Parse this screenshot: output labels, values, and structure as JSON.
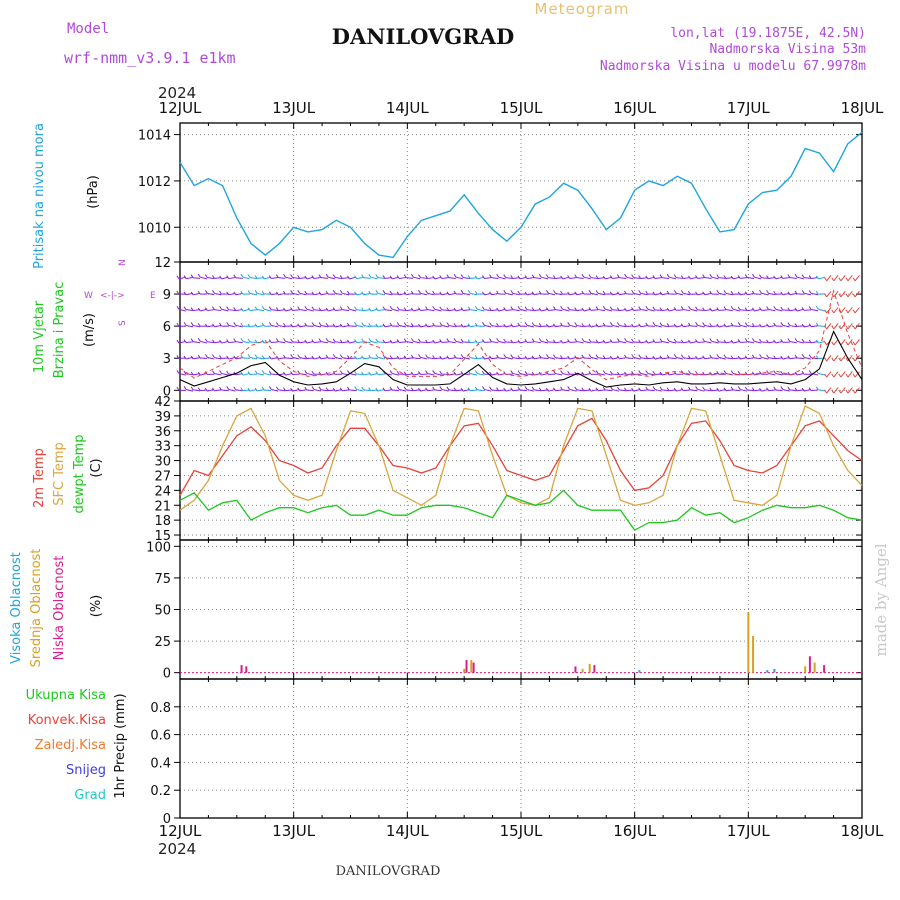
{
  "header": {
    "meteogram_label": "Meteogram",
    "model_label": "Model",
    "model_name": "wrf-nmm_v3.9.1 e1km",
    "title": "DANILOVGRAD",
    "lonlat": "lon,lat (19.1875E, 42.5N)",
    "altitude": "Nadmorska Visina 53m",
    "model_altitude": "Nadmorska Visina u modelu 67.9978m",
    "footer_title": "DANILOVGRAD",
    "watermark": "made by Angel"
  },
  "colors": {
    "pressure": "#1ea5e0",
    "wind_main": "#8a1fd6",
    "wind_strong": "#1ea5e0",
    "wind_gust": "#2a6be0",
    "temp_2m": "#e8413a",
    "temp_sfc": "#d9a63c",
    "dewpoint": "#1ec81e",
    "cloud_high": "#1ea5e0",
    "cloud_mid": "#d9a020",
    "cloud_low": "#d81e8c",
    "precip_total": "#1ec81e",
    "precip_conv": "#e8413a",
    "precip_frz": "#f07a2a",
    "snow": "#4040d8",
    "hail": "#20c8c8"
  },
  "chart_data": [
    {
      "type": "line",
      "panel": "pressure",
      "ylabel_name": "Pritisak na nivou mora",
      "ylabel_unit": "(hPa)",
      "xlim": [
        0,
        144
      ],
      "ylim": [
        1008.5,
        1014.5
      ],
      "yticks": [
        1010,
        1012,
        1014
      ],
      "x_ticklabels": [
        "12JUL",
        "13JUL",
        "14JUL",
        "15JUL",
        "16JUL",
        "17JUL",
        "18JUL"
      ],
      "x_year": "2024",
      "grid": true,
      "series": [
        {
          "x": [
            0,
            3,
            6,
            9,
            12,
            15,
            18,
            21,
            24,
            27,
            30,
            33,
            36,
            39,
            42,
            45,
            48,
            51,
            54,
            57,
            60,
            63,
            66,
            69,
            72,
            75,
            78,
            81,
            84,
            87,
            90,
            93,
            96,
            99,
            102,
            105,
            108,
            111,
            114,
            117,
            120,
            123,
            126,
            129,
            132,
            135,
            138,
            141,
            144
          ],
          "values": [
            1012.8,
            1011.8,
            1012.1,
            1011.8,
            1010.4,
            1009.3,
            1008.8,
            1009.3,
            1010.0,
            1009.8,
            1009.9,
            1010.3,
            1010.0,
            1009.3,
            1008.8,
            1008.7,
            1009.6,
            1010.3,
            1010.5,
            1010.7,
            1011.4,
            1010.6,
            1009.9,
            1009.4,
            1010.0,
            1011.0,
            1011.3,
            1011.9,
            1011.6,
            1010.8,
            1009.9,
            1010.4,
            1011.6,
            1012.0,
            1011.8,
            1012.2,
            1011.9,
            1010.8,
            1009.8,
            1009.9,
            1011.0,
            1011.5,
            1011.6,
            1012.2,
            1013.4,
            1013.2,
            1012.4,
            1013.6,
            1014.1
          ]
        }
      ]
    },
    {
      "type": "line",
      "panel": "wind",
      "ylabel_name": "10m Vjetar",
      "ylabel_name2": "Brzina i Pravac",
      "ylabel_unit": "(m/s)",
      "compass": {
        "n": "N",
        "w": "W",
        "e": "E",
        "s": "S"
      },
      "xlim": [
        0,
        144
      ],
      "ylim": [
        -1,
        12
      ],
      "yticks": [
        0,
        3,
        6,
        9,
        12
      ],
      "grid": true,
      "series": [
        {
          "name_ref": "wind_speed",
          "x": [
            0,
            3,
            6,
            9,
            12,
            15,
            18,
            21,
            24,
            27,
            30,
            33,
            36,
            39,
            42,
            45,
            48,
            51,
            54,
            57,
            60,
            63,
            66,
            69,
            72,
            75,
            78,
            81,
            84,
            87,
            90,
            93,
            96,
            99,
            102,
            105,
            108,
            111,
            114,
            117,
            120,
            123,
            126,
            129,
            132,
            135,
            138,
            141,
            144
          ],
          "values": [
            1.0,
            0.4,
            0.8,
            1.2,
            1.6,
            2.3,
            2.6,
            1.4,
            0.8,
            0.5,
            0.6,
            0.8,
            1.6,
            2.5,
            2.2,
            1.0,
            0.5,
            0.5,
            0.5,
            0.6,
            1.5,
            2.4,
            1.2,
            0.6,
            0.5,
            0.6,
            0.8,
            1.0,
            1.6,
            0.9,
            0.3,
            0.5,
            0.6,
            0.5,
            0.7,
            0.8,
            0.6,
            0.6,
            0.7,
            0.6,
            0.6,
            0.7,
            0.8,
            0.6,
            1.0,
            2.0,
            5.5,
            3.0,
            1.0
          ]
        }
      ]
    },
    {
      "type": "line",
      "panel": "temperature",
      "ylabel_name": "2m Temp",
      "ylabel_name2": "SFC Temp",
      "ylabel_name3": "dewpt Temp",
      "ylabel_unit": "(C)",
      "xlim": [
        0,
        144
      ],
      "ylim": [
        14,
        42
      ],
      "yticks": [
        15,
        18,
        21,
        24,
        27,
        30,
        33,
        36,
        39,
        42
      ],
      "grid": true,
      "series": [
        {
          "name_ref": "2m Temp",
          "x": [
            0,
            3,
            6,
            9,
            12,
            15,
            18,
            21,
            24,
            27,
            30,
            33,
            36,
            39,
            42,
            45,
            48,
            51,
            54,
            57,
            60,
            63,
            66,
            69,
            72,
            75,
            78,
            81,
            84,
            87,
            90,
            93,
            96,
            99,
            102,
            105,
            108,
            111,
            114,
            117,
            120,
            123,
            126,
            129,
            132,
            135,
            138,
            141,
            144
          ],
          "values": [
            23,
            28,
            27,
            31,
            35,
            36.8,
            34,
            30,
            29,
            27.5,
            28.5,
            33,
            36.5,
            36.5,
            33,
            29,
            28.5,
            27.5,
            28.5,
            33,
            37,
            37.5,
            33,
            28,
            27,
            26,
            27,
            32,
            37,
            38.5,
            34,
            28,
            24,
            24.5,
            27,
            33,
            37.5,
            38,
            34,
            29,
            28,
            27.5,
            29,
            33,
            37,
            38,
            35,
            32,
            30
          ]
        },
        {
          "name_ref": "SFC Temp",
          "x": [
            0,
            3,
            6,
            9,
            12,
            15,
            18,
            21,
            24,
            27,
            30,
            33,
            36,
            39,
            42,
            45,
            48,
            51,
            54,
            57,
            60,
            63,
            66,
            69,
            72,
            75,
            78,
            81,
            84,
            87,
            90,
            93,
            96,
            99,
            102,
            105,
            108,
            111,
            114,
            117,
            120,
            123,
            126,
            129,
            132,
            135,
            138,
            141,
            144
          ],
          "values": [
            20,
            22,
            26,
            33,
            39,
            40.5,
            35,
            26,
            23,
            22,
            23,
            32,
            40,
            39.5,
            33,
            24,
            22.5,
            21,
            23,
            33,
            40.5,
            40,
            31,
            23,
            21.5,
            21,
            22.5,
            33,
            40.5,
            40,
            31,
            22,
            21,
            21.5,
            23,
            33,
            40.5,
            40,
            31,
            22,
            21.5,
            21,
            23,
            33,
            41,
            39.5,
            33,
            28,
            25
          ]
        },
        {
          "name_ref": "dewpt Temp",
          "x": [
            0,
            3,
            6,
            9,
            12,
            15,
            18,
            21,
            24,
            27,
            30,
            33,
            36,
            39,
            42,
            45,
            48,
            51,
            54,
            57,
            60,
            63,
            66,
            69,
            72,
            75,
            78,
            81,
            84,
            87,
            90,
            93,
            96,
            99,
            102,
            105,
            108,
            111,
            114,
            117,
            120,
            123,
            126,
            129,
            132,
            135,
            138,
            141,
            144
          ],
          "values": [
            22,
            23.5,
            20,
            21.5,
            22,
            18,
            19.5,
            20.5,
            20.5,
            19.5,
            20.5,
            21,
            19,
            19,
            20,
            19,
            19,
            20.5,
            21,
            21,
            20.5,
            19.5,
            18.5,
            23,
            22,
            21,
            21.5,
            24,
            21,
            20,
            20,
            20,
            16,
            17.5,
            17.5,
            18,
            20.5,
            19,
            19.5,
            17.5,
            18.5,
            20,
            21,
            20.5,
            20.5,
            21,
            20,
            18.5,
            18
          ]
        }
      ]
    },
    {
      "type": "bar",
      "panel": "clouds",
      "ylabel_name": "Visoka Oblacnost",
      "ylabel_name2": "Srednja Oblacnost",
      "ylabel_name3": "Niska Oblacnost",
      "ylabel_unit": "(%)",
      "xlim": [
        0,
        144
      ],
      "ylim": [
        -5,
        105
      ],
      "yticks": [
        0,
        25,
        50,
        75,
        100
      ],
      "grid": true,
      "series": [
        {
          "name_ref": "Visoka Oblacnost",
          "x": [
            97,
            124,
            125.5
          ],
          "values": [
            2,
            2,
            3
          ]
        },
        {
          "name_ref": "Srednja Oblacnost",
          "x": [
            60,
            61.5,
            85,
            86.5,
            120,
            121,
            132,
            134
          ],
          "values": [
            3,
            10,
            3,
            7,
            48,
            29,
            5,
            8
          ]
        },
        {
          "name_ref": "Niska Oblacnost",
          "x": [
            13,
            14,
            60.5,
            62,
            83.5,
            87.5,
            133,
            136
          ],
          "values": [
            6,
            5,
            10,
            8,
            5,
            6,
            13,
            6
          ]
        }
      ]
    },
    {
      "type": "bar",
      "panel": "precipitation",
      "ylabel_unit": "1hr Precip (mm)",
      "legend": [
        "Ukupna Kisa",
        "Konvek.Kisa",
        "Zaledj.Kisa",
        "Snijeg",
        "Grad"
      ],
      "xlim": [
        0,
        144
      ],
      "ylim": [
        0,
        1.0
      ],
      "yticks": [
        0,
        0.2,
        0.4,
        0.6,
        0.8
      ],
      "grid": true,
      "series": []
    }
  ]
}
